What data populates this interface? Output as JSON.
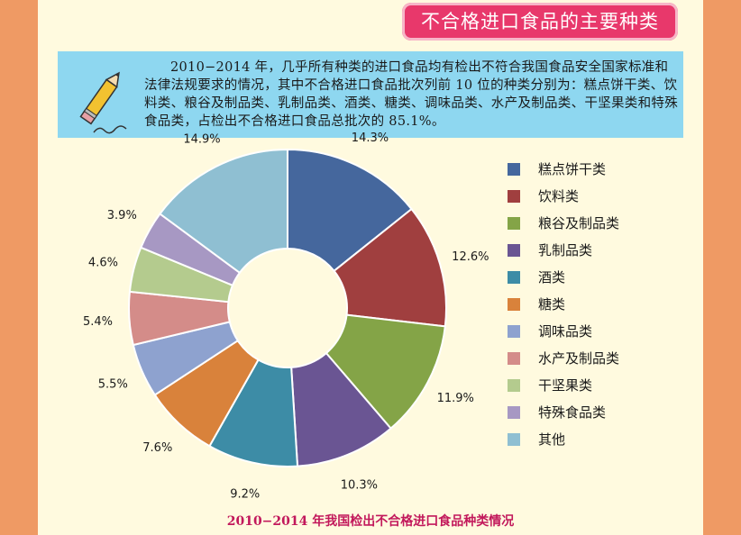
{
  "header": {
    "title": "不合格进口食品的主要种类"
  },
  "intro": {
    "text": "2010−2014 年，几乎所有种类的进口食品均有检出不符合我国食品安全国家标准和法律法规要求的情况，其中不合格进口食品批次列前 10 位的种类分别为：糕点饼干类、饮料类、粮谷及制品类、乳制品类、酒类、糖类、调味品类、水产及制品类、干坚果类和特殊食品类，占检出不合格进口食品总批次的 85.1%。",
    "icon": "pencil-icon"
  },
  "caption": "2010−2014 年我国检出不合格进口食品种类情况",
  "chart_data": {
    "type": "pie",
    "donut": true,
    "legend_position": "right",
    "categories": [
      "糕点饼干类",
      "饮料类",
      "粮谷及制品类",
      "乳制品类",
      "酒类",
      "糖类",
      "调味品类",
      "水产及制品类",
      "干坚果类",
      "特殊食品类",
      "其他"
    ],
    "values": [
      14.3,
      12.6,
      11.9,
      10.3,
      9.2,
      7.6,
      5.5,
      5.4,
      4.6,
      3.9,
      14.9
    ],
    "data_labels": [
      "14.3%",
      "12.6%",
      "11.9%",
      "10.3%",
      "9.2%",
      "7.6%",
      "5.5%",
      "5.4%",
      "4.6%",
      "3.9%",
      "14.9%"
    ],
    "colors": [
      "#45679d",
      "#a03f3f",
      "#84a447",
      "#6a5593",
      "#3d8ca6",
      "#d9823b",
      "#8ea2cf",
      "#d48c89",
      "#b4cb8e",
      "#a798c3",
      "#8fbfd2"
    ]
  }
}
